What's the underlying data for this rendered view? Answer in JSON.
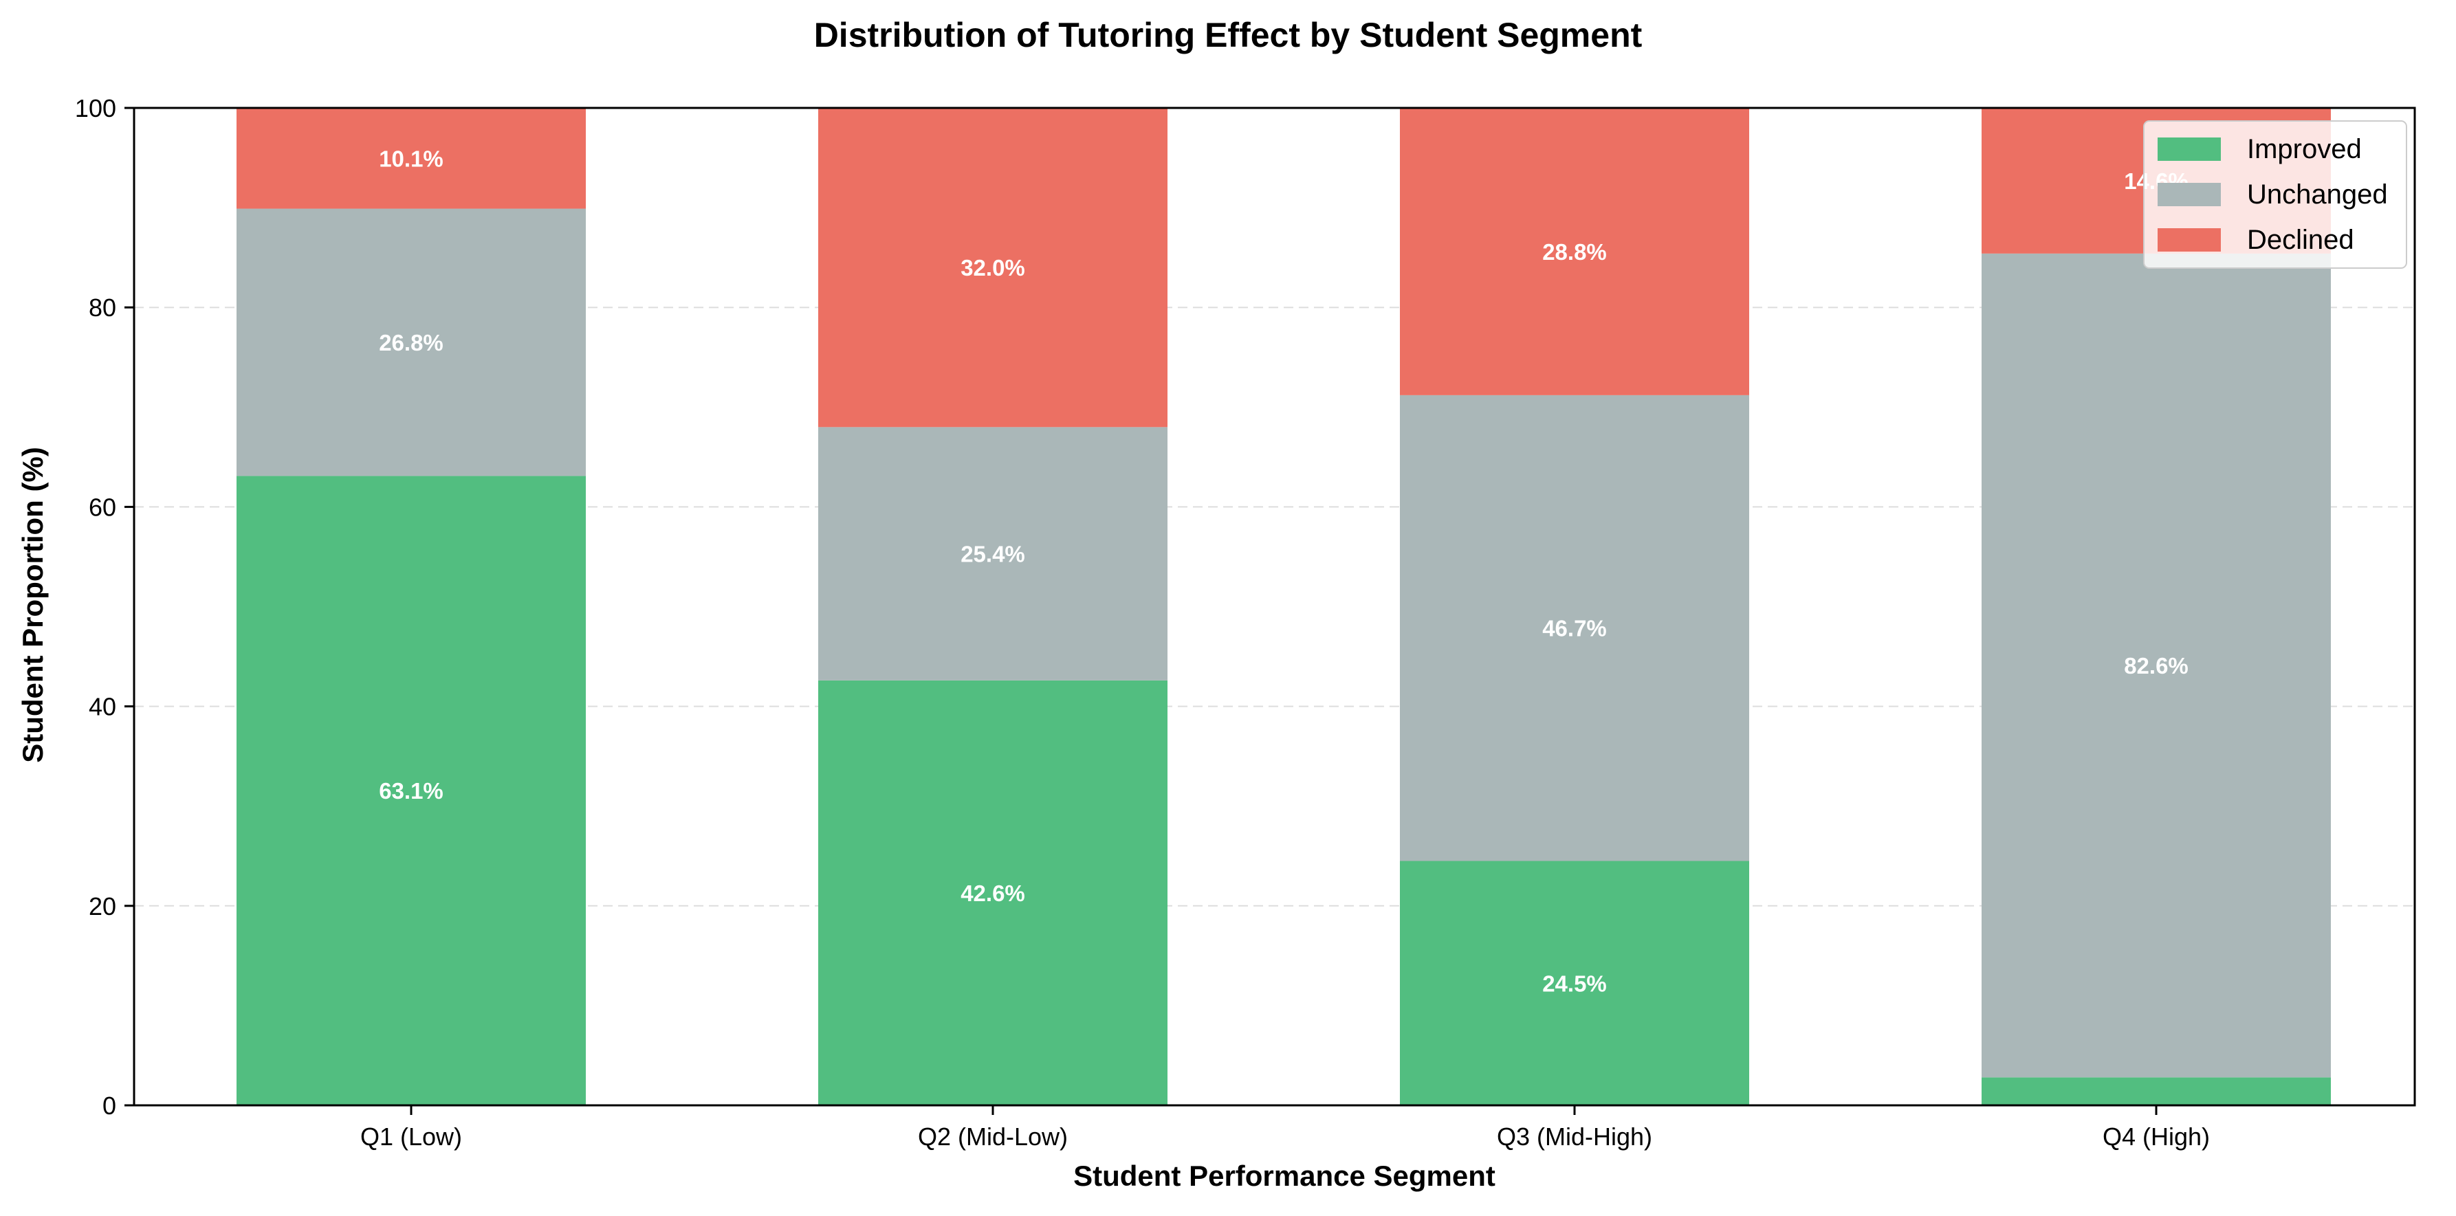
{
  "chart_data": {
    "type": "bar",
    "stacked": true,
    "title": "Distribution of Tutoring Effect by Student Segment",
    "xlabel": "Student Performance Segment",
    "ylabel": "Student Proportion (%)",
    "ylim": [
      0,
      100
    ],
    "yticks": [
      0,
      20,
      40,
      60,
      80,
      100
    ],
    "grid": "y-dashed",
    "legend_position": "top-right",
    "categories": [
      "Q1 (Low)",
      "Q2 (Mid-Low)",
      "Q3 (Mid-High)",
      "Q4 (High)"
    ],
    "series": [
      {
        "name": "Improved",
        "color": "#52be80",
        "values": [
          63.1,
          42.6,
          24.5,
          2.8
        ],
        "labels": [
          "63.1%",
          "42.6%",
          "24.5%",
          ""
        ]
      },
      {
        "name": "Unchanged",
        "color": "#aab7b8",
        "values": [
          26.8,
          25.4,
          46.7,
          82.6
        ],
        "labels": [
          "26.8%",
          "25.4%",
          "46.7%",
          "82.6%"
        ]
      },
      {
        "name": "Declined",
        "color": "#ec7063",
        "values": [
          10.1,
          32.0,
          28.8,
          14.6
        ],
        "labels": [
          "10.1%",
          "32.0%",
          "28.8%",
          "14.6%"
        ]
      }
    ]
  }
}
